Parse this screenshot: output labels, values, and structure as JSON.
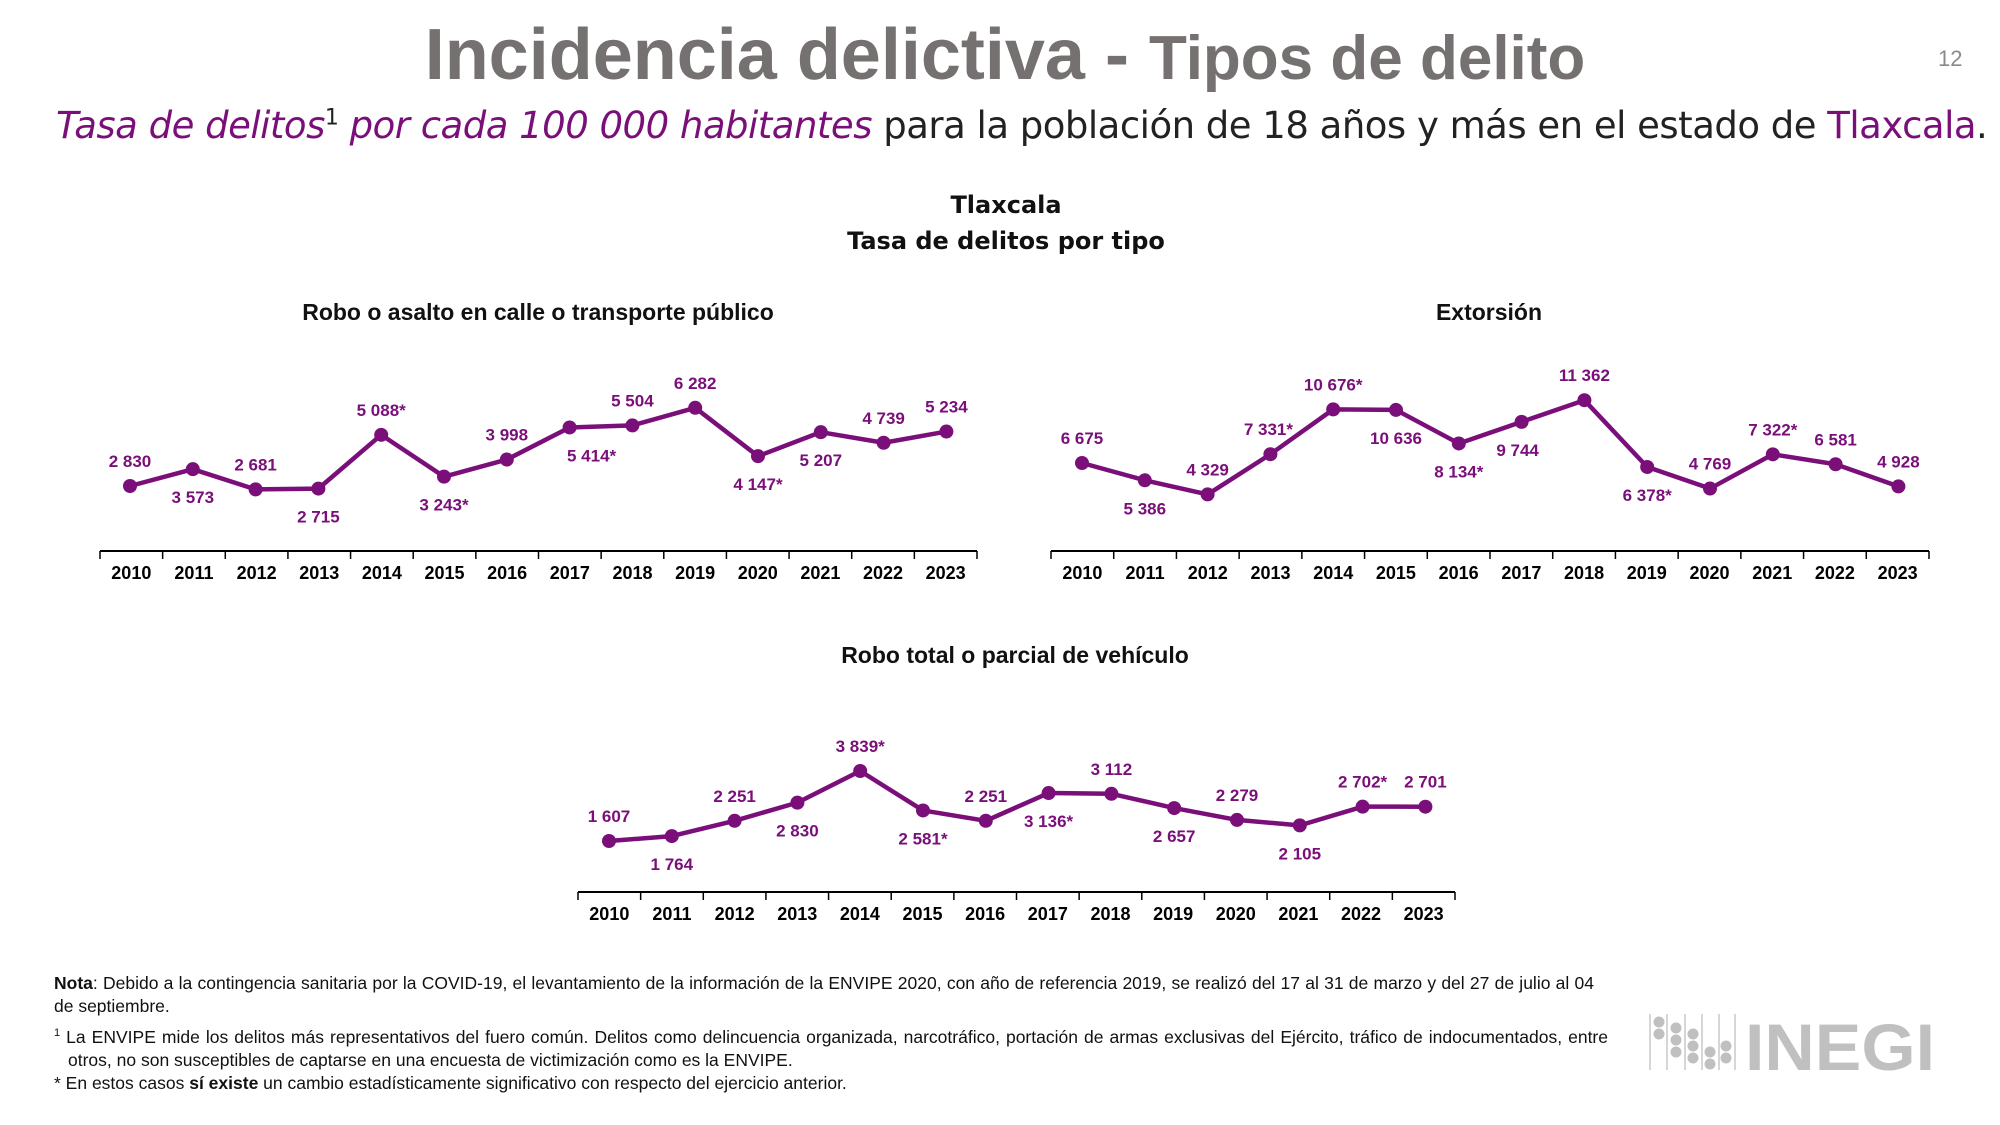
{
  "header": {
    "title_main": "Incidencia delictiva - ",
    "title_sub": "Tipos de delito",
    "page_number": "12",
    "subtitle_em": "Tasa de delitos",
    "subtitle_sup": "1",
    "subtitle_em2": " por cada 100 000 habitantes",
    "subtitle_rest": " para la población de 18 años y más en el estado de ",
    "subtitle_place": "Tlaxcala",
    "subtitle_end": "."
  },
  "figure": {
    "heading1": "Tlaxcala",
    "heading2": "Tasa de delitos por tipo"
  },
  "colors": {
    "series": "#7a0f7a",
    "title": "#767171",
    "axis": "#000000"
  },
  "chart_data": [
    {
      "type": "line",
      "title": "Robo o asalto en calle o transporte público",
      "categories": [
        "2010",
        "2011",
        "2012",
        "2013",
        "2014",
        "2015",
        "2016",
        "2017",
        "2018",
        "2019",
        "2020",
        "2021",
        "2022",
        "2023"
      ],
      "values": [
        2830,
        3573,
        2681,
        2715,
        5088,
        3243,
        3998,
        5414,
        5504,
        6282,
        4147,
        5207,
        4739,
        5234
      ],
      "labels": [
        "2 830",
        "3 573",
        "2 681",
        "2 715",
        "5 088*",
        "3 243*",
        "3 998",
        "5 414*",
        "5 504",
        "6 282",
        "4 147*",
        "5 207",
        "4 739",
        "5 234"
      ],
      "significant": [
        false,
        false,
        false,
        false,
        true,
        true,
        false,
        true,
        false,
        false,
        true,
        false,
        false,
        false
      ],
      "grid": false
    },
    {
      "type": "line",
      "title": "Extorsión",
      "categories": [
        "2010",
        "2011",
        "2012",
        "2013",
        "2014",
        "2015",
        "2016",
        "2017",
        "2018",
        "2019",
        "2020",
        "2021",
        "2022",
        "2023"
      ],
      "values": [
        6675,
        5386,
        4329,
        7331,
        10676,
        10636,
        8134,
        9744,
        11362,
        6378,
        4769,
        7322,
        6581,
        4928
      ],
      "labels": [
        "6 675",
        "5 386",
        "4 329",
        "7 331*",
        "10 676*",
        "10 636",
        "8 134*",
        "9 744",
        "11 362",
        "6 378*",
        "4 769",
        "7 322*",
        "6 581",
        "4 928"
      ],
      "significant": [
        false,
        false,
        false,
        true,
        true,
        false,
        true,
        false,
        false,
        true,
        false,
        true,
        false,
        false
      ],
      "grid": false
    },
    {
      "type": "line",
      "title": "Robo total o parcial de vehículo",
      "categories": [
        "2010",
        "2011",
        "2012",
        "2013",
        "2014",
        "2015",
        "2016",
        "2017",
        "2018",
        "2019",
        "2020",
        "2021",
        "2022",
        "2023"
      ],
      "values": [
        1607,
        1764,
        2251,
        2830,
        3839,
        2581,
        2251,
        3136,
        3112,
        2657,
        2279,
        2105,
        2702,
        2701
      ],
      "labels": [
        "1 607",
        "1 764",
        "2 251",
        "2 830",
        "3 839*",
        "2 581*",
        "2 251",
        "3 136*",
        "3 112",
        "2 657",
        "2 279",
        "2 105",
        "2 702*",
        "2 701"
      ],
      "significant": [
        false,
        false,
        false,
        false,
        true,
        true,
        false,
        true,
        false,
        false,
        false,
        false,
        true,
        false
      ],
      "grid": false
    }
  ],
  "notes": {
    "nota_label": "Nota",
    "nota_text": ": Debido a la contingencia sanitaria por la COVID-19, el levantamiento de la información de la ENVIPE 2020, con año de referencia 2019, se realizó del 17 al 31 de marzo y del 27 de julio al 04 de septiembre.",
    "footnote1_mark": "1",
    "footnote1_text": " La ENVIPE mide los delitos más representativos del fuero común. Delitos como delincuencia organizada, narcotráfico, portación de armas exclusivas del Ejército, tráfico de indocumentados, entre otros, no son susceptibles de captarse en una encuesta de victimización como es la ENVIPE.",
    "star_pre": "* En estos casos ",
    "star_bold": "sí existe",
    "star_post": " un cambio estadísticamente significativo con respecto del ejercicio anterior."
  },
  "logo": {
    "text": "INEGI"
  }
}
